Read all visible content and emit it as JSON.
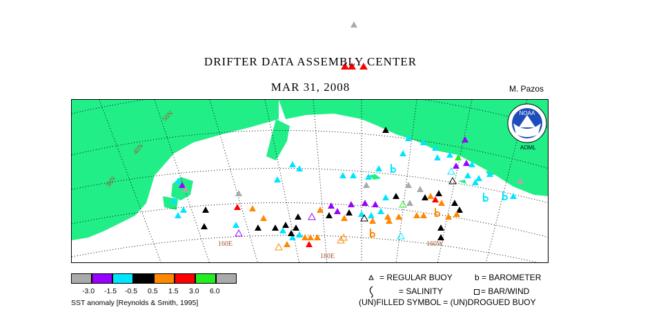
{
  "header": {
    "title": "DRIFTER DATA ASSEMBLY CENTER",
    "date": "MAR 31, 2008",
    "author": "M. Pazos"
  },
  "map": {
    "lat_labels": [
      "50N",
      "40N",
      "30N"
    ],
    "lon_labels": [
      "160E",
      "180E",
      "160W"
    ],
    "logo_text": "NOAA",
    "aoml": "AOML",
    "land_color": "#22ee88",
    "ocean_color": "#ffffff"
  },
  "legend": {
    "colors": [
      "#aaaaaa",
      "#9900ff",
      "#00e5ff",
      "#000000",
      "#ff8800",
      "#ff0000",
      "#22ee22",
      "#aaaaaa"
    ],
    "ticks": [
      "-3.0",
      "-1.5",
      "-0.5",
      "0.5",
      "1.5",
      "3.0",
      "6.0"
    ],
    "sst_label": "SST anomaly [Reynolds & Smith, 1995]"
  },
  "key": {
    "regular": "= REGULAR BUOY",
    "barometer": "b = BAROMETER",
    "salinity": "= SALINITY",
    "barwind": "= BAR/WIND",
    "drogue": "(UN)FILLED SYMBOL = (UN)DROGUED BUOY"
  }
}
